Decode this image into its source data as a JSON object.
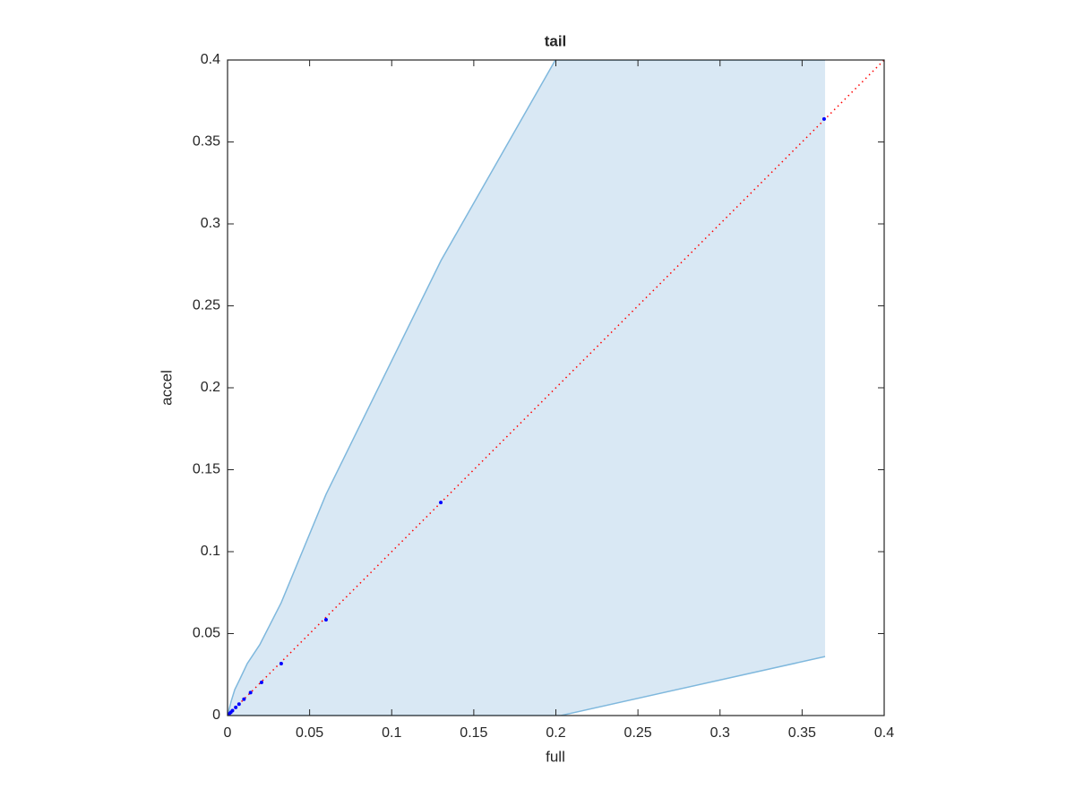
{
  "chart_data": {
    "type": "scatter",
    "title": "tail",
    "xlabel": "full",
    "ylabel": "accel",
    "xlim": [
      0,
      0.4
    ],
    "ylim": [
      0,
      0.4
    ],
    "xticks": [
      0,
      0.05,
      0.1,
      0.15,
      0.2,
      0.25,
      0.3,
      0.35,
      0.4
    ],
    "yticks": [
      0,
      0.05,
      0.1,
      0.15,
      0.2,
      0.25,
      0.3,
      0.35,
      0.4
    ],
    "band": {
      "color": "#7fb8dd",
      "fill": "#d9e8f4",
      "x": [
        0,
        0.0022,
        0.0044,
        0.0076,
        0.012,
        0.0196,
        0.0327,
        0.06,
        0.13,
        0.1997,
        0.203,
        0.364
      ],
      "upper": [
        0,
        0.0087,
        0.0158,
        0.0224,
        0.0317,
        0.0432,
        0.0689,
        0.135,
        0.2776,
        0.4,
        0.4,
        0.4
      ],
      "lower": [
        0,
        0,
        0,
        0,
        0,
        0,
        0,
        0,
        0,
        0,
        0,
        0.036
      ]
    },
    "points": {
      "color": "#0000ff",
      "x": [
        0,
        0.0005,
        0.001,
        0.002,
        0.003,
        0.005,
        0.007,
        0.01,
        0.014,
        0.0207,
        0.0327,
        0.06,
        0.1299,
        0.3634
      ],
      "y": [
        0,
        0.0005,
        0.001,
        0.002,
        0.003,
        0.005,
        0.007,
        0.01,
        0.014,
        0.0202,
        0.0317,
        0.0585,
        0.13,
        0.364
      ]
    },
    "reference": {
      "color": "#ff0000",
      "x": [
        0,
        0.4
      ],
      "y": [
        0,
        0.4
      ]
    }
  }
}
